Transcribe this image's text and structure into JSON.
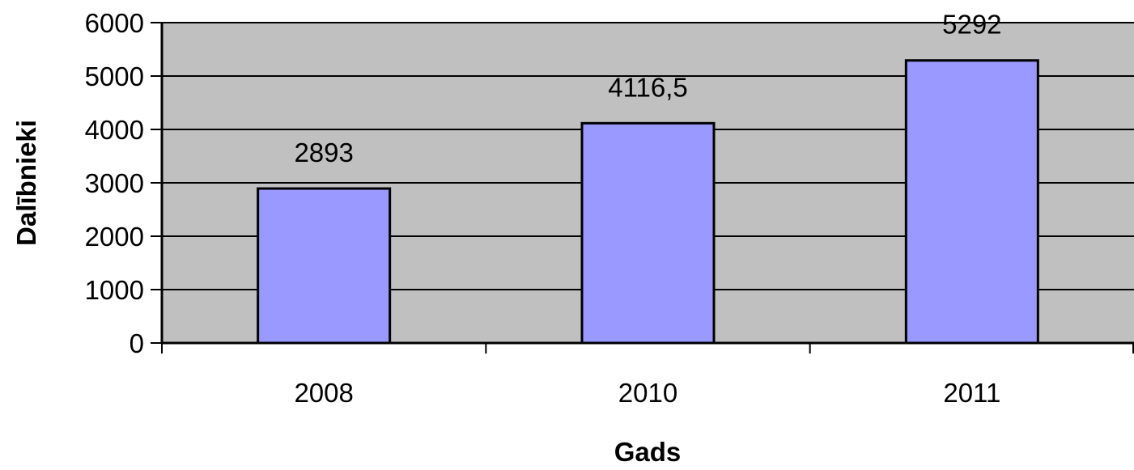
{
  "chart_data": {
    "type": "bar",
    "categories": [
      "2008",
      "2010",
      "2011"
    ],
    "values": [
      2893,
      4116.5,
      5292
    ],
    "value_labels": [
      "2893",
      "4116,5",
      "5292"
    ],
    "xlabel": "Gads",
    "ylabel": "Dalībnieki",
    "ylim": [
      0,
      6000
    ],
    "yticks": [
      0,
      1000,
      2000,
      3000,
      4000,
      5000,
      6000
    ],
    "ytick_labels": [
      "0",
      "1000",
      "2000",
      "3000",
      "4000",
      "5000",
      "6000"
    ],
    "grid": true,
    "legend": "none"
  },
  "colors": {
    "plot_background": "#c0c0c0",
    "bar_fill": "#9999ff",
    "bar_stroke": "#000000",
    "gridline": "#000000",
    "axis": "#000000"
  }
}
